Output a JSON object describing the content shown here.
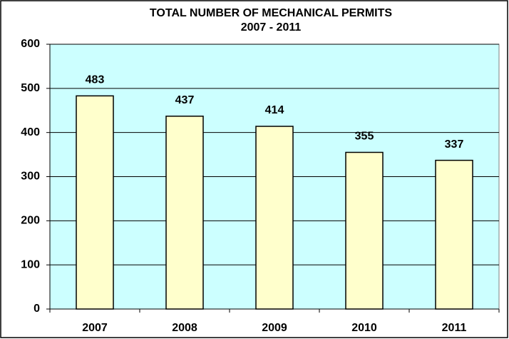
{
  "chart_data": {
    "type": "bar",
    "title": "TOTAL NUMBER OF MECHANICAL PERMITS",
    "subtitle": "2007 - 2011",
    "categories": [
      "2007",
      "2008",
      "2009",
      "2010",
      "2011"
    ],
    "values": [
      483,
      437,
      414,
      355,
      337
    ],
    "color": "#ffffcc",
    "plot_background": "#ccffff",
    "ylim": [
      0,
      600
    ],
    "yticks": [
      0,
      100,
      200,
      300,
      400,
      500,
      600
    ],
    "grid": true
  }
}
